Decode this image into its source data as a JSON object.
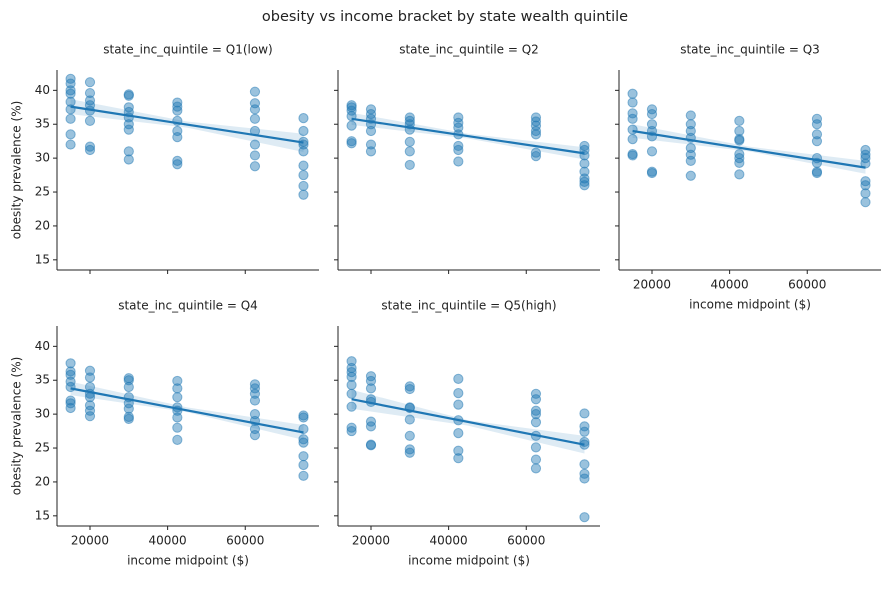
{
  "title": "obesity vs income bracket by state wealth quintile",
  "chart_data": [
    {
      "type": "scatter",
      "title": "state_inc_quintile = Q1(low)",
      "ylabel": "obesity prevalence (%)",
      "color": "#1f77b4",
      "x_ticklabels": false,
      "y_ticklabels": true,
      "xlim": [
        11500,
        79000
      ],
      "ylim": [
        13.5,
        43
      ],
      "xticks": [
        20000,
        40000,
        60000
      ],
      "yticks": [
        15,
        20,
        25,
        30,
        35,
        40
      ],
      "x": [
        15000,
        15000,
        15000,
        15000,
        15000,
        15000,
        15000,
        15000,
        15000,
        20000,
        20000,
        20000,
        20000,
        20000,
        20000,
        20000,
        20000,
        30000,
        30000,
        30000,
        30000,
        30000,
        30000,
        30000,
        30000,
        30000,
        42500,
        42500,
        42500,
        42500,
        42500,
        42500,
        42500,
        42500,
        62500,
        62500,
        62500,
        62500,
        62500,
        62500,
        62500,
        62500,
        75000,
        75000,
        75000,
        75000,
        75000,
        75000,
        75000,
        75000,
        75000
      ],
      "y": [
        41.7,
        41.0,
        40.0,
        39.5,
        38.3,
        37.2,
        35.8,
        33.5,
        32.0,
        41.2,
        39.6,
        38.5,
        37.8,
        37.0,
        35.5,
        31.7,
        31.2,
        39.4,
        39.2,
        37.5,
        36.8,
        36.0,
        35.0,
        34.2,
        31.0,
        29.8,
        38.2,
        37.6,
        37.0,
        35.5,
        34.0,
        33.1,
        29.6,
        29.1,
        39.8,
        38.1,
        37.2,
        35.8,
        34.0,
        32.0,
        30.4,
        28.8,
        35.9,
        34.0,
        32.4,
        32.0,
        31.0,
        28.9,
        27.5,
        25.9,
        24.6
      ],
      "trend": {
        "x": [
          15000,
          75000
        ],
        "y": [
          37.6,
          32.3
        ]
      },
      "ci": {
        "x": [
          15000,
          45000,
          75000
        ],
        "lower": [
          36.5,
          34.5,
          30.9
        ],
        "upper": [
          38.7,
          35.4,
          33.6
        ]
      }
    },
    {
      "type": "scatter",
      "title": "state_inc_quintile = Q2",
      "color": "#1f77b4",
      "x_ticklabels": false,
      "y_ticklabels": false,
      "xlim": [
        11500,
        79000
      ],
      "ylim": [
        13.5,
        43
      ],
      "xticks": [
        20000,
        40000,
        60000
      ],
      "yticks": [
        15,
        20,
        25,
        30,
        35,
        40
      ],
      "x": [
        15000,
        15000,
        15000,
        15000,
        15000,
        15000,
        15000,
        20000,
        20000,
        20000,
        20000,
        20000,
        20000,
        20000,
        30000,
        30000,
        30000,
        30000,
        30000,
        30000,
        30000,
        42500,
        42500,
        42500,
        42500,
        42500,
        42500,
        42500,
        62500,
        62500,
        62500,
        62500,
        62500,
        62500,
        62500,
        75000,
        75000,
        75000,
        75000,
        75000,
        75000,
        75000,
        75000
      ],
      "y": [
        37.8,
        37.5,
        37.0,
        36.2,
        34.8,
        32.5,
        32.2,
        37.2,
        36.5,
        35.8,
        35.0,
        34.0,
        32.0,
        31.0,
        36.0,
        35.5,
        35.0,
        34.2,
        32.4,
        31.0,
        29.0,
        36.0,
        35.2,
        34.5,
        33.5,
        31.8,
        31.2,
        29.5,
        36.0,
        35.4,
        34.8,
        34.0,
        33.5,
        30.8,
        30.3,
        31.8,
        31.2,
        30.4,
        29.2,
        28.0,
        27.0,
        26.5,
        26.0
      ],
      "trend": {
        "x": [
          15000,
          75000
        ],
        "y": [
          35.8,
          30.7
        ]
      },
      "ci": {
        "x": [
          15000,
          45000,
          75000
        ],
        "lower": [
          34.9,
          32.9,
          29.8
        ],
        "upper": [
          36.7,
          33.6,
          31.6
        ]
      }
    },
    {
      "type": "scatter",
      "title": "state_inc_quintile = Q3",
      "xlabel": "income midpoint ($)",
      "color": "#1f77b4",
      "x_ticklabels": true,
      "y_ticklabels": false,
      "xlim": [
        11500,
        79000
      ],
      "ylim": [
        13.5,
        43
      ],
      "xticks": [
        20000,
        40000,
        60000
      ],
      "yticks": [
        15,
        20,
        25,
        30,
        35,
        40
      ],
      "x": [
        15000,
        15000,
        15000,
        15000,
        15000,
        15000,
        15000,
        15000,
        20000,
        20000,
        20000,
        20000,
        20000,
        20000,
        20000,
        20000,
        30000,
        30000,
        30000,
        30000,
        30000,
        30000,
        30000,
        30000,
        42500,
        42500,
        42500,
        42500,
        42500,
        42500,
        42500,
        42500,
        62500,
        62500,
        62500,
        62500,
        62500,
        62500,
        62500,
        62500,
        75000,
        75000,
        75000,
        75000,
        75000,
        75000,
        75000,
        75000
      ],
      "y": [
        39.5,
        38.2,
        36.6,
        35.8,
        34.2,
        32.8,
        30.6,
        30.4,
        37.2,
        36.5,
        35.0,
        34.0,
        33.2,
        31.0,
        28.0,
        27.8,
        36.3,
        35.0,
        34.0,
        33.0,
        31.5,
        30.5,
        29.6,
        27.4,
        35.5,
        34.0,
        32.8,
        32.6,
        30.6,
        30.0,
        29.3,
        27.6,
        35.8,
        35.0,
        33.5,
        32.5,
        30.0,
        29.3,
        28.0,
        27.8,
        31.2,
        30.5,
        30.0,
        29.2,
        26.6,
        26.0,
        24.8,
        23.5
      ],
      "trend": {
        "x": [
          15000,
          75000
        ],
        "y": [
          34.0,
          28.6
        ]
      },
      "ci": {
        "x": [
          15000,
          45000,
          75000
        ],
        "lower": [
          33.0,
          31.0,
          27.7
        ],
        "upper": [
          35.0,
          31.7,
          29.6
        ]
      }
    },
    {
      "type": "scatter",
      "title": "state_inc_quintile = Q4",
      "xlabel": "income midpoint ($)",
      "ylabel": "obesity prevalence (%)",
      "color": "#1f77b4",
      "x_ticklabels": true,
      "y_ticklabels": true,
      "xlim": [
        11500,
        79000
      ],
      "ylim": [
        13.5,
        43
      ],
      "xticks": [
        20000,
        40000,
        60000
      ],
      "yticks": [
        15,
        20,
        25,
        30,
        35,
        40
      ],
      "x": [
        15000,
        15000,
        15000,
        15000,
        15000,
        15000,
        15000,
        15000,
        20000,
        20000,
        20000,
        20000,
        20000,
        20000,
        20000,
        20000,
        30000,
        30000,
        30000,
        30000,
        30000,
        30000,
        30000,
        30000,
        42500,
        42500,
        42500,
        42500,
        42500,
        42500,
        42500,
        42500,
        62500,
        62500,
        62500,
        62500,
        62500,
        62500,
        62500,
        62500,
        75000,
        75000,
        75000,
        75000,
        75000,
        75000,
        75000,
        75000
      ],
      "y": [
        37.5,
        36.3,
        35.8,
        34.8,
        34.0,
        32.0,
        31.6,
        30.9,
        36.4,
        35.4,
        34.0,
        33.0,
        32.5,
        31.3,
        30.5,
        29.7,
        35.3,
        35.0,
        34.0,
        32.5,
        31.6,
        30.8,
        29.6,
        29.3,
        34.9,
        33.8,
        32.5,
        31.0,
        30.5,
        29.5,
        28.0,
        26.2,
        34.4,
        33.8,
        33.0,
        32.0,
        30.0,
        29.0,
        27.8,
        26.9,
        29.8,
        29.5,
        27.8,
        26.3,
        25.8,
        23.8,
        22.5,
        20.9
      ],
      "trend": {
        "x": [
          15000,
          75000
        ],
        "y": [
          33.8,
          27.3
        ]
      },
      "ci": {
        "x": [
          15000,
          45000,
          75000
        ],
        "lower": [
          32.8,
          30.3,
          26.2
        ],
        "upper": [
          34.8,
          31.0,
          28.4
        ]
      }
    },
    {
      "type": "scatter",
      "title": "state_inc_quintile = Q5(high)",
      "xlabel": "income midpoint ($)",
      "color": "#1f77b4",
      "x_ticklabels": true,
      "y_ticklabels": false,
      "xlim": [
        11500,
        79000
      ],
      "ylim": [
        13.5,
        43
      ],
      "xticks": [
        20000,
        40000,
        60000
      ],
      "yticks": [
        15,
        20,
        25,
        30,
        35,
        40
      ],
      "x": [
        15000,
        15000,
        15000,
        15000,
        15000,
        15000,
        15000,
        15000,
        15000,
        20000,
        20000,
        20000,
        20000,
        20000,
        20000,
        20000,
        20000,
        20000,
        30000,
        30000,
        30000,
        30000,
        30000,
        30000,
        30000,
        30000,
        42500,
        42500,
        42500,
        42500,
        42500,
        42500,
        42500,
        62500,
        62500,
        62500,
        62500,
        62500,
        62500,
        62500,
        62500,
        62500,
        75000,
        75000,
        75000,
        75000,
        75000,
        75000,
        75000,
        75000,
        75000
      ],
      "y": [
        37.8,
        36.8,
        36.2,
        35.5,
        34.3,
        33.0,
        31.1,
        28.0,
        27.5,
        35.6,
        34.9,
        33.8,
        32.2,
        31.8,
        28.9,
        28.2,
        25.5,
        25.4,
        34.1,
        33.7,
        31.0,
        30.9,
        29.2,
        26.8,
        24.8,
        24.3,
        35.2,
        33.1,
        31.4,
        29.1,
        27.2,
        24.6,
        23.5,
        33.0,
        32.2,
        30.5,
        30.0,
        28.8,
        26.8,
        25.1,
        23.3,
        22.0,
        30.1,
        28.2,
        27.4,
        25.9,
        25.5,
        22.6,
        21.2,
        20.5,
        14.8
      ],
      "trend": {
        "x": [
          15000,
          75000
        ],
        "y": [
          32.2,
          25.5
        ]
      },
      "ci": {
        "x": [
          15000,
          45000,
          75000
        ],
        "lower": [
          30.8,
          28.3,
          24.2
        ],
        "upper": [
          33.6,
          29.1,
          26.8
        ]
      }
    }
  ]
}
